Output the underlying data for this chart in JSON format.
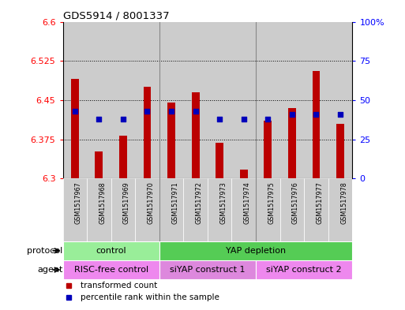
{
  "title": "GDS5914 / 8001337",
  "samples": [
    "GSM1517967",
    "GSM1517968",
    "GSM1517969",
    "GSM1517970",
    "GSM1517971",
    "GSM1517972",
    "GSM1517973",
    "GSM1517974",
    "GSM1517975",
    "GSM1517976",
    "GSM1517977",
    "GSM1517978"
  ],
  "transformed_count": [
    6.49,
    6.352,
    6.382,
    6.475,
    6.445,
    6.465,
    6.368,
    6.317,
    6.41,
    6.435,
    6.505,
    6.405
  ],
  "percentile_rank": [
    43,
    38,
    38,
    43,
    43,
    43,
    38,
    38,
    38,
    41,
    41,
    41
  ],
  "ylim_left": [
    6.3,
    6.6
  ],
  "ylim_right": [
    0,
    100
  ],
  "yticks_left": [
    6.3,
    6.375,
    6.45,
    6.525,
    6.6
  ],
  "yticks_right": [
    0,
    25,
    50,
    75,
    100
  ],
  "ytick_labels_left": [
    "6.3",
    "6.375",
    "6.45",
    "6.525",
    "6.6"
  ],
  "ytick_labels_right": [
    "0",
    "25",
    "50",
    "75",
    "100%"
  ],
  "bar_color": "#bb0000",
  "dot_color": "#0000bb",
  "bar_base": 6.3,
  "protocol_labels": [
    {
      "text": "control",
      "start": 0,
      "end": 3,
      "color": "#99ee99"
    },
    {
      "text": "YAP depletion",
      "start": 4,
      "end": 11,
      "color": "#55cc55"
    }
  ],
  "agent_labels": [
    {
      "text": "RISC-free control",
      "start": 0,
      "end": 3,
      "color": "#ee88ee"
    },
    {
      "text": "siYAP construct 1",
      "start": 4,
      "end": 7,
      "color": "#dd88dd"
    },
    {
      "text": "siYAP construct 2",
      "start": 8,
      "end": 11,
      "color": "#ee88ee"
    }
  ],
  "protocol_row_label": "protocol",
  "agent_row_label": "agent",
  "legend_items": [
    {
      "color": "#bb0000",
      "label": "transformed count"
    },
    {
      "color": "#0000bb",
      "label": "percentile rank within the sample"
    }
  ],
  "col_bg_color": "#cccccc",
  "plot_bg_color": "#ffffff",
  "separator_color": "#888888",
  "grid_color": "#000000"
}
